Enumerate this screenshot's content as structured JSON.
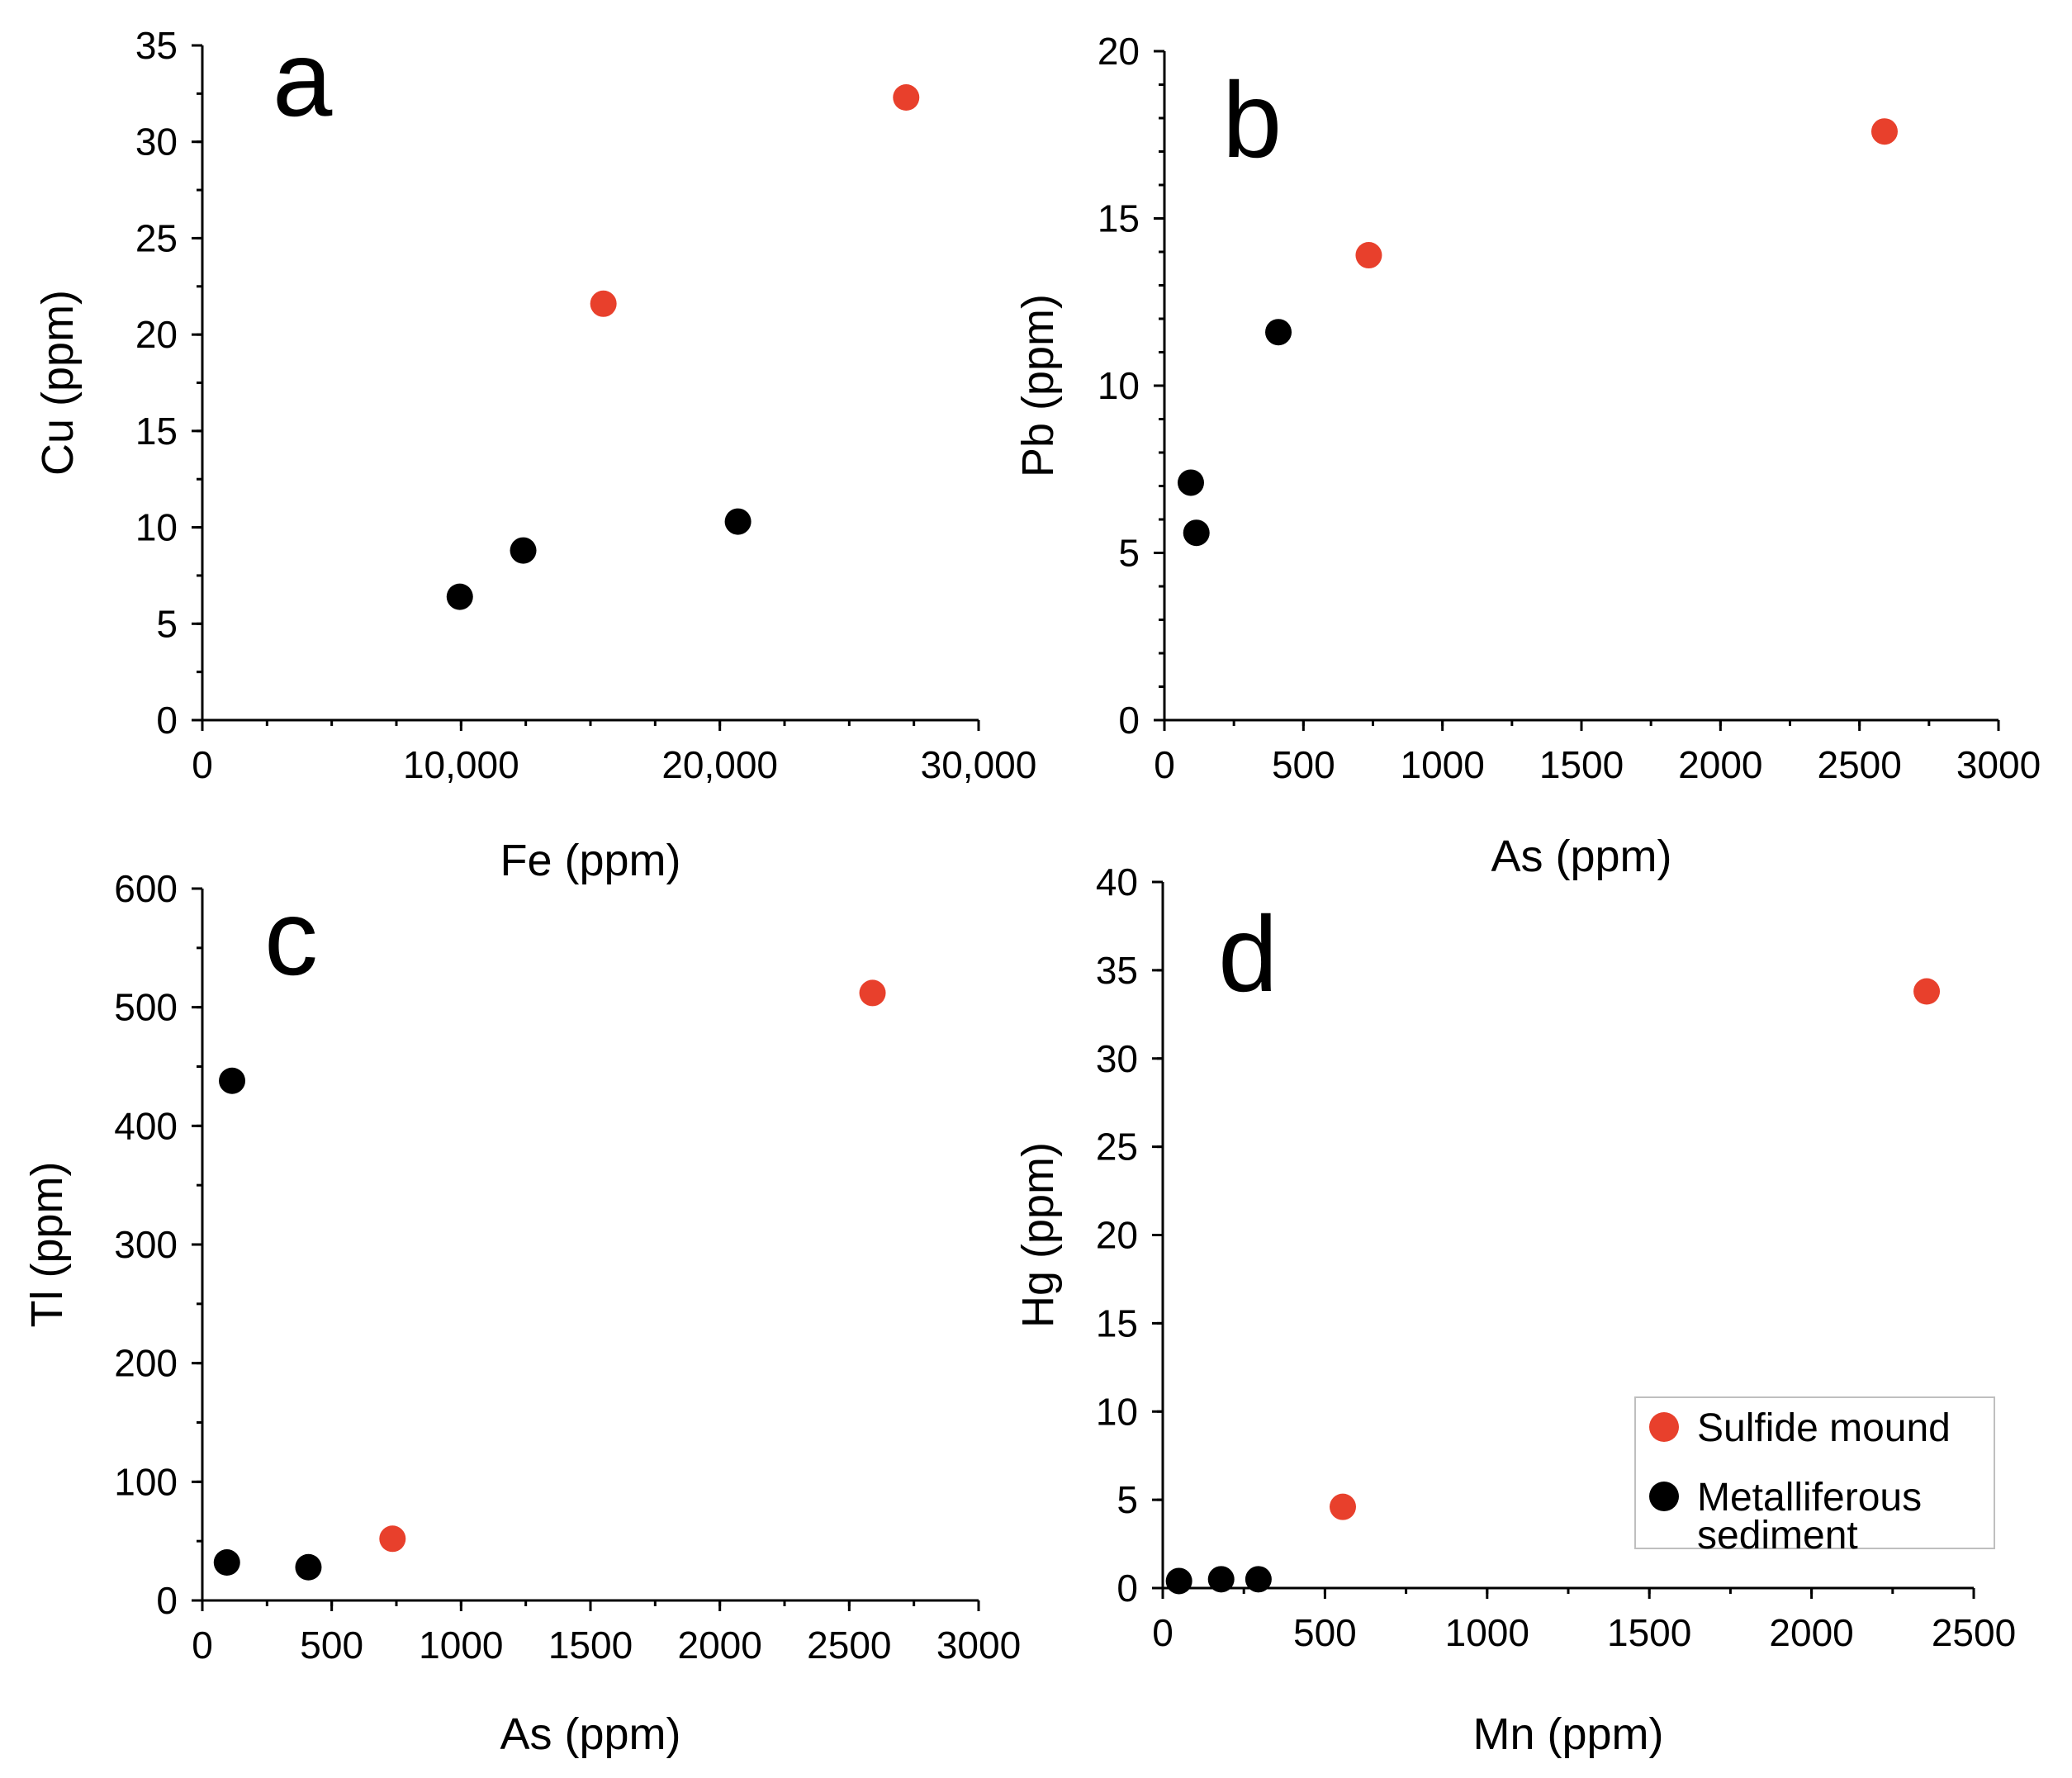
{
  "colors": {
    "sulfide_mound": "#e8402c",
    "metalliferous_sediment": "#000000",
    "axis": "#000000"
  },
  "legend": {
    "items": [
      {
        "label_lines": [
          "Sulfide mound"
        ],
        "color": "#e8402c"
      },
      {
        "label_lines": [
          "Metalliferous",
          "sediment"
        ],
        "color": "#000000"
      }
    ]
  },
  "chart_data": [
    {
      "type": "scatter",
      "panel": "a",
      "xlabel": "Fe (ppm)",
      "ylabel": "Cu (ppm)",
      "xlim": [
        0,
        30000
      ],
      "ylim": [
        0,
        35
      ],
      "x_ticks": [
        0,
        10000,
        20000,
        30000
      ],
      "x_tick_labels": [
        "0",
        "10,000",
        "20,000",
        "30,000"
      ],
      "x_minor_step": 2500,
      "y_ticks": [
        0,
        5,
        10,
        15,
        20,
        25,
        30,
        35
      ],
      "y_tick_labels": [
        "0",
        "5",
        "10",
        "15",
        "20",
        "25",
        "30",
        "35"
      ],
      "y_minor_step": 2.5,
      "series": [
        {
          "name": "Sulfide mound",
          "color": "#e8402c",
          "x": [
            15500,
            27200
          ],
          "y": [
            21.6,
            32.3
          ]
        },
        {
          "name": "Metalliferous sediment",
          "color": "#000000",
          "x": [
            9950,
            12400,
            20700
          ],
          "y": [
            6.4,
            8.8,
            10.3
          ]
        }
      ]
    },
    {
      "type": "scatter",
      "panel": "b",
      "xlabel": "As (ppm)",
      "ylabel": "Pb (ppm)",
      "xlim": [
        0,
        3000
      ],
      "ylim": [
        0,
        20
      ],
      "x_ticks": [
        0,
        500,
        1000,
        1500,
        2000,
        2500,
        3000
      ],
      "x_tick_labels": [
        "0",
        "500",
        "1000",
        "1500",
        "2000",
        "2500",
        "3000"
      ],
      "x_minor_step": 250,
      "y_ticks": [
        0,
        5,
        10,
        15,
        20
      ],
      "y_tick_labels": [
        "0",
        "5",
        "10",
        "15",
        "20"
      ],
      "y_minor_step": 1,
      "series": [
        {
          "name": "Sulfide mound",
          "color": "#e8402c",
          "x": [
            735,
            2590
          ],
          "y": [
            13.9,
            17.6
          ]
        },
        {
          "name": "Metalliferous sediment",
          "color": "#000000",
          "x": [
            95,
            115,
            410
          ],
          "y": [
            7.1,
            5.6,
            11.6
          ]
        }
      ]
    },
    {
      "type": "scatter",
      "panel": "c",
      "xlabel": "As (ppm)",
      "ylabel": "Tl (ppm)",
      "xlim": [
        0,
        3000
      ],
      "ylim": [
        0,
        600
      ],
      "x_ticks": [
        0,
        500,
        1000,
        1500,
        2000,
        2500,
        3000
      ],
      "x_tick_labels": [
        "0",
        "500",
        "1000",
        "1500",
        "2000",
        "2500",
        "3000"
      ],
      "x_minor_step": 250,
      "y_ticks": [
        0,
        100,
        200,
        300,
        400,
        500,
        600
      ],
      "y_tick_labels": [
        "0",
        "100",
        "200",
        "300",
        "400",
        "500",
        "600"
      ],
      "y_minor_step": 50,
      "series": [
        {
          "name": "Sulfide mound",
          "color": "#e8402c",
          "x": [
            735,
            2590
          ],
          "y": [
            52,
            512
          ]
        },
        {
          "name": "Metalliferous sediment",
          "color": "#000000",
          "x": [
            95,
            115,
            410
          ],
          "y": [
            32,
            438,
            28
          ]
        }
      ]
    },
    {
      "type": "scatter",
      "panel": "d",
      "xlabel": "Mn (ppm)",
      "ylabel": "Hg (ppm)",
      "xlim": [
        0,
        2500
      ],
      "ylim": [
        0,
        40
      ],
      "x_ticks": [
        0,
        500,
        1000,
        1500,
        2000,
        2500
      ],
      "x_tick_labels": [
        "0",
        "500",
        "1000",
        "1500",
        "2000",
        "2500"
      ],
      "x_minor_step": 250,
      "y_ticks": [
        0,
        5,
        10,
        15,
        20,
        25,
        30,
        35,
        40
      ],
      "y_tick_labels": [
        "0",
        "5",
        "10",
        "15",
        "20",
        "25",
        "30",
        "35",
        "40"
      ],
      "y_minor_step": 5,
      "series": [
        {
          "name": "Sulfide mound",
          "color": "#e8402c",
          "x": [
            555,
            2355
          ],
          "y": [
            4.6,
            33.8
          ]
        },
        {
          "name": "Metalliferous sediment",
          "color": "#000000",
          "x": [
            50,
            180,
            295
          ],
          "y": [
            0.4,
            0.5,
            0.5
          ]
        }
      ]
    }
  ]
}
